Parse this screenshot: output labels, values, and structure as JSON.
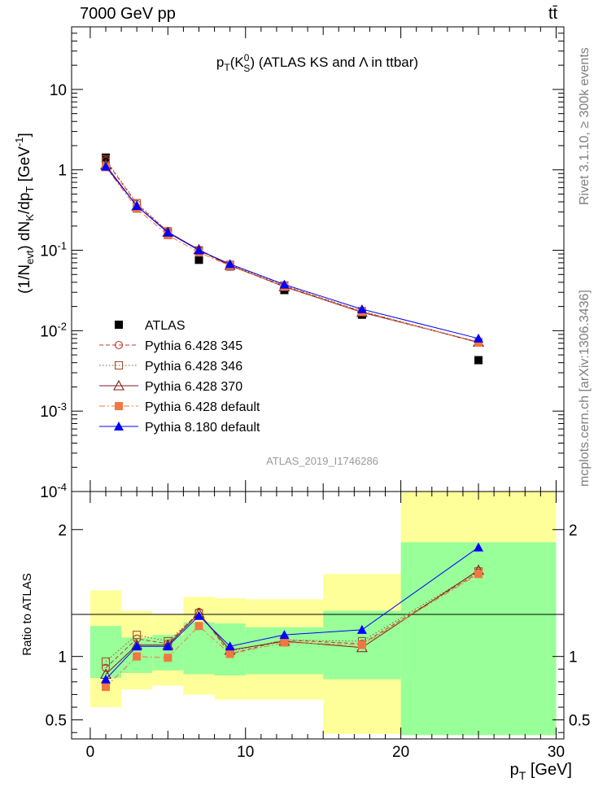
{
  "header": {
    "energy_label": "7000 GeV pp",
    "process_label": "tt̄"
  },
  "side_labels": {
    "rivet": "Rivet 3.1.10, ≥ 300k events",
    "mcplots": "mcplots.cern.ch [arXiv:1306.3436]"
  },
  "chart_data": [
    {
      "type": "scatter",
      "title": "p_T(K_S^0) (ATLAS KS and Λ in ttbar)",
      "analysis_label": "ATLAS_2019_I1746286",
      "ylabel": "(1/N_evt) dN_K/dp_T [GeV^-1]",
      "xlabel": "",
      "y_scale": "log",
      "xlim": [
        -1.2,
        30.5
      ],
      "ylim": [
        0.0001,
        60
      ],
      "y_tick_labels": [
        "10",
        "1",
        "10^-1",
        "10^-2",
        "10^-3",
        "10^-4"
      ],
      "legend_position": "lower-left",
      "x": [
        1,
        3,
        5,
        7,
        9,
        12.5,
        17.5,
        25
      ],
      "series": [
        {
          "name": "ATLAS",
          "color": "#000000",
          "marker": "filled-square",
          "line": "none",
          "values": [
            1.42,
            0.33,
            0.155,
            0.076,
            0.063,
            0.032,
            0.0158,
            0.0043
          ]
        },
        {
          "name": "Pythia 6.428 345",
          "color": "#c0392b",
          "marker": "open-circle",
          "line": "dashed",
          "values": [
            1.3,
            0.375,
            0.17,
            0.1,
            0.064,
            0.036,
            0.0173,
            0.0071
          ]
        },
        {
          "name": "Pythia 6.428 346",
          "color": "#a0522d",
          "marker": "open-square",
          "line": "dotted",
          "values": [
            1.35,
            0.385,
            0.172,
            0.1,
            0.066,
            0.0365,
            0.0175,
            0.0072
          ]
        },
        {
          "name": "Pythia 6.428 370",
          "color": "#7b1c1c",
          "marker": "open-triangle",
          "line": "solid",
          "values": [
            1.15,
            0.355,
            0.168,
            0.102,
            0.065,
            0.0352,
            0.0169,
            0.0072
          ]
        },
        {
          "name": "Pythia 6.428 default",
          "color": "#f07840",
          "marker": "filled-square",
          "line": "dashdot",
          "values": [
            1.08,
            0.33,
            0.154,
            0.094,
            0.064,
            0.0355,
            0.0172,
            0.0071
          ]
        },
        {
          "name": "Pythia 8.180 default",
          "color": "#0000ff",
          "marker": "filled-triangle",
          "line": "solid",
          "values": [
            1.1,
            0.355,
            0.166,
            0.1,
            0.0675,
            0.0375,
            0.0185,
            0.008
          ]
        }
      ]
    },
    {
      "type": "line",
      "ylabel": "Ratio to ATLAS",
      "xlabel": "p_T [GeV]",
      "xlim": [
        -1.2,
        30.5
      ],
      "ylim": [
        0.35,
        2.3
      ],
      "x_ticks": [
        0,
        10,
        20,
        30
      ],
      "y_tick_labels": [
        "2",
        "1",
        "0.5"
      ],
      "bins": [
        [
          0,
          2
        ],
        [
          2,
          4
        ],
        [
          4,
          6
        ],
        [
          6,
          8
        ],
        [
          8,
          10
        ],
        [
          10,
          15
        ],
        [
          15,
          20
        ],
        [
          20,
          30
        ]
      ],
      "band_inner": {
        "color": "#99ff99",
        "low": [
          0.83,
          0.87,
          0.89,
          0.86,
          0.85,
          0.86,
          0.82,
          0.38
        ],
        "high": [
          1.24,
          1.15,
          1.17,
          1.27,
          1.26,
          1.23,
          1.36,
          1.9
        ]
      },
      "band_outer": {
        "color": "#ffff99",
        "low": [
          0.6,
          0.74,
          0.77,
          0.7,
          0.66,
          0.66,
          0.39,
          0.38
        ],
        "high": [
          1.52,
          1.36,
          1.33,
          1.47,
          1.46,
          1.45,
          1.65,
          2.3
        ]
      },
      "x": [
        1,
        3,
        5,
        7,
        9,
        12.5,
        17.5,
        25
      ],
      "series": [
        {
          "name": "Pythia 6.428 345",
          "color": "#c0392b",
          "values": [
            0.91,
            1.14,
            1.1,
            1.35,
            1.02,
            1.13,
            1.1,
            1.66
          ]
        },
        {
          "name": "Pythia 6.428 346",
          "color": "#a0522d",
          "values": [
            0.96,
            1.17,
            1.12,
            1.34,
            1.04,
            1.13,
            1.12,
            1.67
          ]
        },
        {
          "name": "Pythia 6.428 370",
          "color": "#7b1c1c",
          "values": [
            0.86,
            1.09,
            1.09,
            1.34,
            1.05,
            1.12,
            1.07,
            1.68
          ]
        },
        {
          "name": "Pythia 6.428 default",
          "color": "#f07840",
          "values": [
            0.76,
            1.0,
            0.99,
            1.24,
            1.02,
            1.11,
            1.09,
            1.65
          ]
        },
        {
          "name": "Pythia 8.180 default",
          "color": "#0000ff",
          "values": [
            0.82,
            1.08,
            1.08,
            1.32,
            1.08,
            1.17,
            1.21,
            1.86
          ]
        }
      ]
    }
  ]
}
